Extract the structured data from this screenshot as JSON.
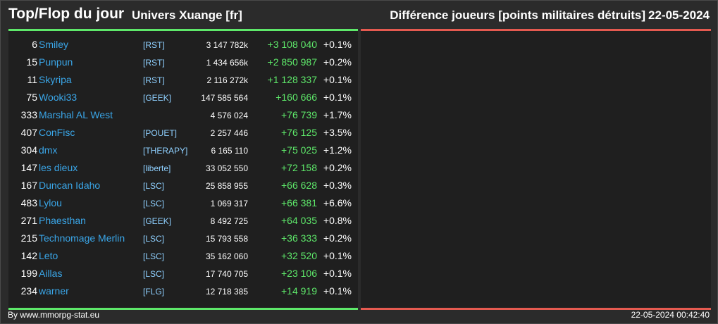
{
  "header": {
    "title": "Top/Flop du jour",
    "subtitle": "Univers Xuange [fr]",
    "right_title": "Différence joueurs [points militaires détruits]",
    "date": "22-05-2024"
  },
  "colors": {
    "accent_green": "#5ee86a",
    "accent_red": "#e55a50",
    "player_name": "#3aa6e8"
  },
  "rows": [
    {
      "rank": "6",
      "name": "Smiley",
      "tag": "[RST]",
      "points": "3 147 782k",
      "delta": "+3 108 040",
      "pct": "+0.1%"
    },
    {
      "rank": "15",
      "name": "Punpun",
      "tag": "[RST]",
      "points": "1 434 656k",
      "delta": "+2 850 987",
      "pct": "+0.2%"
    },
    {
      "rank": "11",
      "name": "Skyripa",
      "tag": "[RST]",
      "points": "2 116 272k",
      "delta": "+1 128 337",
      "pct": "+0.1%"
    },
    {
      "rank": "75",
      "name": "Wooki33",
      "tag": "[GEEK]",
      "points": "147 585 564",
      "delta": "+160 666",
      "pct": "+0.1%"
    },
    {
      "rank": "333",
      "name": "Marshal AL West",
      "tag": "",
      "points": "4 576 024",
      "delta": "+76 739",
      "pct": "+1.7%"
    },
    {
      "rank": "407",
      "name": "ConFisc",
      "tag": "[POUET]",
      "points": "2 257 446",
      "delta": "+76 125",
      "pct": "+3.5%"
    },
    {
      "rank": "304",
      "name": "dmx",
      "tag": "[THERAPY]",
      "points": "6 165 110",
      "delta": "+75 025",
      "pct": "+1.2%"
    },
    {
      "rank": "147",
      "name": "les dieux",
      "tag": "[liberte]",
      "points": "33 052 550",
      "delta": "+72 158",
      "pct": "+0.2%"
    },
    {
      "rank": "167",
      "name": "Duncan Idaho",
      "tag": "[LSC]",
      "points": "25 858 955",
      "delta": "+66 628",
      "pct": "+0.3%"
    },
    {
      "rank": "483",
      "name": "Lylou",
      "tag": "[LSC]",
      "points": "1 069 317",
      "delta": "+66 381",
      "pct": "+6.6%"
    },
    {
      "rank": "271",
      "name": "Phaesthan",
      "tag": "[GEEK]",
      "points": "8 492 725",
      "delta": "+64 035",
      "pct": "+0.8%"
    },
    {
      "rank": "215",
      "name": "Technomage Merlin",
      "tag": "[LSC]",
      "points": "15 793 558",
      "delta": "+36 333",
      "pct": "+0.2%"
    },
    {
      "rank": "142",
      "name": "Leto",
      "tag": "[LSC]",
      "points": "35 162 060",
      "delta": "+32 520",
      "pct": "+0.1%"
    },
    {
      "rank": "199",
      "name": "Aillas",
      "tag": "[LSC]",
      "points": "17 740 705",
      "delta": "+23 106",
      "pct": "+0.1%"
    },
    {
      "rank": "234",
      "name": "warner",
      "tag": "[FLG]",
      "points": "12 718 385",
      "delta": "+14 919",
      "pct": "+0.1%"
    }
  ],
  "footer": {
    "source": "By www.mmorpg-stat.eu",
    "timestamp": "22-05-2024 00:42:40"
  }
}
